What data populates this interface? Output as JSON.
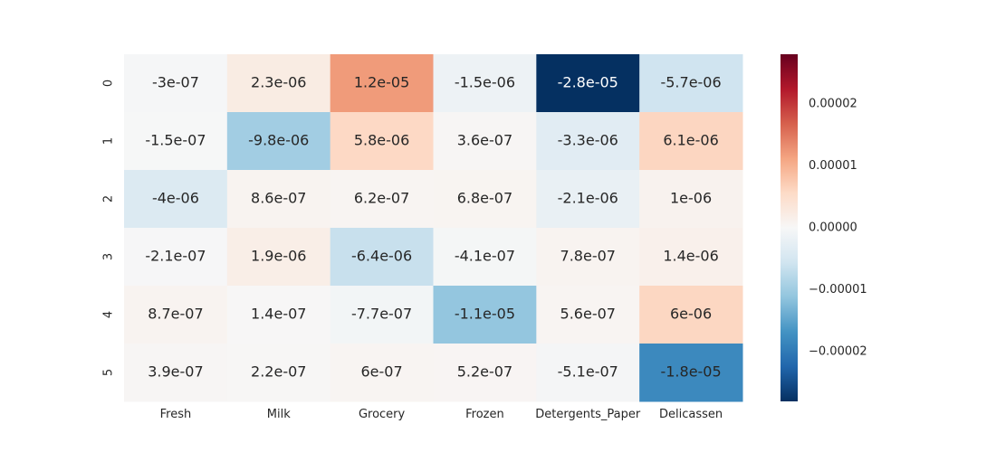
{
  "chart_data": {
    "type": "heatmap",
    "title": "",
    "xlabel": "",
    "ylabel": "",
    "x_categories": [
      "Fresh",
      "Milk",
      "Grocery",
      "Frozen",
      "Detergents_Paper",
      "Delicassen"
    ],
    "y_categories": [
      "0",
      "1",
      "2",
      "3",
      "4",
      "5"
    ],
    "values": [
      [
        -3e-07,
        2.3e-06,
        1.2e-05,
        -1.5e-06,
        -2.8e-05,
        -5.7e-06
      ],
      [
        -1.5e-07,
        -9.8e-06,
        5.8e-06,
        3.6e-07,
        -3.3e-06,
        6.1e-06
      ],
      [
        -4e-06,
        8.6e-07,
        6.2e-07,
        6.8e-07,
        -2.1e-06,
        1e-06
      ],
      [
        -2.1e-07,
        1.9e-06,
        -6.4e-06,
        -4.1e-07,
        7.8e-07,
        1.4e-06
      ],
      [
        8.7e-07,
        1.4e-07,
        -7.7e-07,
        -1.1e-05,
        5.6e-07,
        6e-06
      ],
      [
        3.9e-07,
        2.2e-07,
        6e-07,
        5.2e-07,
        -5.1e-07,
        -1.8e-05
      ]
    ],
    "annotations": [
      [
        "-3e-07",
        "2.3e-06",
        "1.2e-05",
        "-1.5e-06",
        "-2.8e-05",
        "-5.7e-06"
      ],
      [
        "-1.5e-07",
        "-9.8e-06",
        "5.8e-06",
        "3.6e-07",
        "-3.3e-06",
        "6.1e-06"
      ],
      [
        "-4e-06",
        "8.6e-07",
        "6.2e-07",
        "6.8e-07",
        "-2.1e-06",
        "1e-06"
      ],
      [
        "-2.1e-07",
        "1.9e-06",
        "-6.4e-06",
        "-4.1e-07",
        "7.8e-07",
        "1.4e-06"
      ],
      [
        "8.7e-07",
        "1.4e-07",
        "-7.7e-07",
        "-1.1e-05",
        "5.6e-07",
        "6e-06"
      ],
      [
        "3.9e-07",
        "2.2e-07",
        "6e-07",
        "5.2e-07",
        "-5.1e-07",
        "-1.8e-05"
      ]
    ],
    "colormap": "RdBu_r",
    "vmin": -2.8e-05,
    "vmax": 2.8e-05,
    "colorbar": {
      "ticks": [
        2e-05,
        1e-05,
        0.0,
        -1e-05,
        -2e-05
      ],
      "tick_labels": [
        "0.00002",
        "0.00001",
        "0.00000",
        "−0.00001",
        "−0.00002"
      ]
    },
    "grid": false
  }
}
